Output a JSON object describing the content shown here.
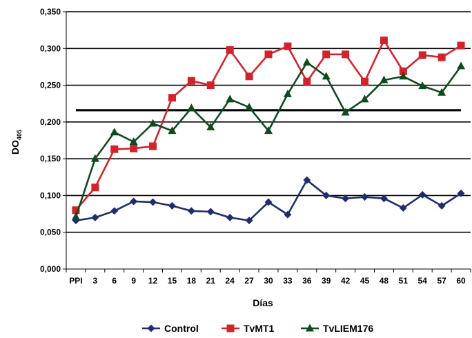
{
  "chart_data": {
    "type": "line",
    "xlabel": "Días",
    "ylabel_main": "DO",
    "ylabel_sub": "405",
    "categories": [
      "PPI",
      "3",
      "6",
      "9",
      "12",
      "15",
      "18",
      "21",
      "24",
      "27",
      "30",
      "33",
      "36",
      "39",
      "42",
      "45",
      "48",
      "51",
      "54",
      "57",
      "60"
    ],
    "ylim": [
      0,
      0.35
    ],
    "yticks": [
      "0,000",
      "0,050",
      "0,100",
      "0,150",
      "0,200",
      "0,250",
      "0,300",
      "0,350"
    ],
    "grid": true,
    "legend_position": "bottom",
    "series": [
      {
        "name": "Control",
        "color": "#1f2d6e",
        "marker": "diamond",
        "values": [
          0.066,
          0.07,
          0.079,
          0.092,
          0.091,
          0.086,
          0.079,
          0.078,
          0.07,
          0.066,
          0.091,
          0.074,
          0.121,
          0.1,
          0.096,
          0.098,
          0.096,
          0.083,
          0.101,
          0.086,
          0.103
        ]
      },
      {
        "name": "TvMT1",
        "color": "#d2232a",
        "marker": "square",
        "values": [
          0.08,
          0.111,
          0.163,
          0.164,
          0.167,
          0.233,
          0.256,
          0.25,
          0.298,
          0.262,
          0.292,
          0.303,
          0.255,
          0.292,
          0.292,
          0.255,
          0.311,
          0.269,
          0.291,
          0.288,
          0.304
        ]
      },
      {
        "name": "TvLIEM176",
        "color": "#0e4a1e",
        "marker": "triangle",
        "values": [
          0.071,
          0.15,
          0.186,
          0.173,
          0.198,
          0.188,
          0.219,
          0.193,
          0.231,
          0.22,
          0.188,
          0.238,
          0.281,
          0.262,
          0.213,
          0.231,
          0.257,
          0.262,
          0.249,
          0.24,
          0.276
        ]
      }
    ],
    "threshold": {
      "value": 0.216,
      "color": "#000000"
    }
  }
}
